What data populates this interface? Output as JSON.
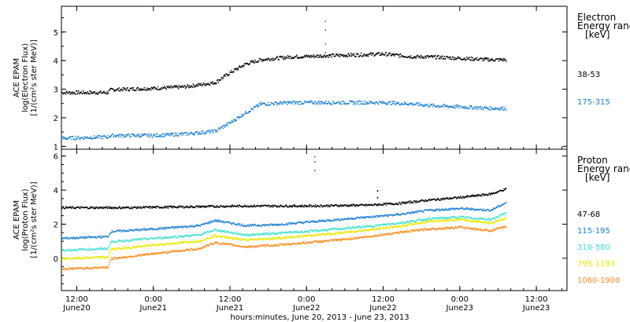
{
  "chart_data": {
    "type": "scatter",
    "xlabel": "hours:minutes, June 20, 2013 - June 23, 2013",
    "x_ticks": [
      {
        "t": 0.5,
        "time": "12:00",
        "date": "June20"
      },
      {
        "t": 1.0,
        "time": "0:00",
        "date": "June21"
      },
      {
        "t": 1.5,
        "time": "12:00",
        "date": "June21"
      },
      {
        "t": 2.0,
        "time": "0:00",
        "date": "June22"
      },
      {
        "t": 2.5,
        "time": "12:00",
        "date": "June22"
      },
      {
        "t": 3.0,
        "time": "0:00",
        "date": "June23"
      },
      {
        "t": 3.5,
        "time": "12:00",
        "date": "June23"
      }
    ],
    "xlim_days_from_june20": [
      0.4,
      3.7
    ],
    "panels": [
      {
        "name": "electron",
        "ylabel_lines": [
          "ACE EPAM",
          "log(Electron Flux)",
          "[1/(cm²s ster MeV)]"
        ],
        "ylim": [
          0.9,
          5.9
        ],
        "yticks": [
          1,
          2,
          3,
          4,
          5
        ],
        "legend_title": [
          "Electron",
          "Energy range",
          "[keV]"
        ],
        "series": [
          {
            "name": "38-53",
            "color": "#000000",
            "t": [
              0.4,
              0.7,
              0.72,
              1.0,
              1.2,
              1.4,
              1.5,
              1.6,
              1.7,
              1.9,
              2.2,
              2.5,
              2.7,
              2.8,
              3.0,
              3.2,
              3.3
            ],
            "y": [
              2.9,
              2.9,
              3.0,
              3.05,
              3.1,
              3.25,
              3.6,
              3.9,
              4.05,
              4.15,
              4.2,
              4.25,
              4.15,
              4.15,
              4.1,
              4.05,
              4.05
            ]
          },
          {
            "name": "175-315",
            "color": "#1c7fd4",
            "t": [
              0.4,
              0.7,
              0.72,
              1.0,
              1.2,
              1.4,
              1.5,
              1.6,
              1.7,
              1.9,
              2.2,
              2.5,
              2.7,
              2.8,
              3.0,
              3.2,
              3.3
            ],
            "y": [
              1.3,
              1.35,
              1.4,
              1.4,
              1.45,
              1.55,
              1.85,
              2.2,
              2.5,
              2.55,
              2.55,
              2.55,
              2.5,
              2.45,
              2.4,
              2.35,
              2.35
            ]
          }
        ],
        "spikes": [
          {
            "t": 2.12,
            "y": [
              4.3,
              4.6,
              5.1,
              5.4
            ],
            "color": "#1c7fd4"
          }
        ]
      },
      {
        "name": "proton",
        "ylabel_lines": [
          "ACE EPAM",
          "log(Proton Flux)",
          "[1/(cm²s ster MeV)]"
        ],
        "ylim": [
          -1.9,
          6.4
        ],
        "yticks": [
          0,
          2,
          4,
          6
        ],
        "legend_title": [
          "Proton",
          "Energy range",
          "[keV]"
        ],
        "series": [
          {
            "name": "47-68",
            "color": "#000000",
            "t": [
              0.4,
              0.8,
              1.2,
              1.6,
              2.0,
              2.4,
              2.6,
              2.8,
              3.0,
              3.2,
              3.3
            ],
            "y": [
              3.0,
              3.0,
              3.05,
              3.1,
              3.1,
              3.15,
              3.25,
              3.45,
              3.6,
              3.8,
              4.1
            ]
          },
          {
            "name": "115-195",
            "color": "#1c7fd4",
            "t": [
              0.4,
              0.7,
              0.72,
              1.0,
              1.3,
              1.4,
              1.6,
              1.8,
              2.0,
              2.2,
              2.4,
              2.6,
              2.8,
              3.0,
              3.2,
              3.3
            ],
            "y": [
              1.2,
              1.3,
              1.6,
              1.75,
              1.95,
              2.25,
              1.95,
              2.0,
              2.15,
              2.3,
              2.45,
              2.6,
              2.85,
              2.95,
              2.85,
              3.3
            ]
          },
          {
            "name": "310-580",
            "color": "#3fe0d0",
            "t": [
              0.4,
              0.7,
              0.72,
              1.0,
              1.3,
              1.4,
              1.6,
              1.8,
              2.0,
              2.2,
              2.4,
              2.6,
              2.8,
              3.0,
              3.2,
              3.3
            ],
            "y": [
              0.5,
              0.6,
              1.0,
              1.2,
              1.4,
              1.7,
              1.4,
              1.5,
              1.6,
              1.75,
              1.9,
              2.1,
              2.35,
              2.45,
              2.3,
              2.7
            ]
          },
          {
            "name": "795-1193",
            "color": "#e8e800",
            "t": [
              0.4,
              0.7,
              0.72,
              1.0,
              1.3,
              1.4,
              1.6,
              1.8,
              2.0,
              2.2,
              2.4,
              2.6,
              2.8,
              3.0,
              3.2,
              3.3
            ],
            "y": [
              0.0,
              0.1,
              0.55,
              0.8,
              1.05,
              1.35,
              1.1,
              1.2,
              1.35,
              1.5,
              1.7,
              1.9,
              2.2,
              2.3,
              2.1,
              2.4
            ]
          },
          {
            "name": "1060-1900",
            "color": "#ff8a1c",
            "t": [
              0.4,
              0.7,
              0.72,
              1.0,
              1.3,
              1.4,
              1.6,
              1.8,
              2.0,
              2.2,
              2.4,
              2.6,
              2.8,
              3.0,
              3.2,
              3.3
            ],
            "y": [
              -0.6,
              -0.5,
              0.0,
              0.3,
              0.6,
              0.95,
              0.7,
              0.8,
              0.95,
              1.1,
              1.3,
              1.55,
              1.75,
              1.85,
              1.65,
              1.9
            ]
          }
        ],
        "spikes": [
          {
            "t": 2.05,
            "y": [
              5.2,
              5.7,
              6.0
            ],
            "color": "#1c7fd4"
          },
          {
            "t": 2.46,
            "y": [
              3.2,
              3.6,
              4.0
            ],
            "color": "#000000"
          }
        ]
      }
    ]
  }
}
